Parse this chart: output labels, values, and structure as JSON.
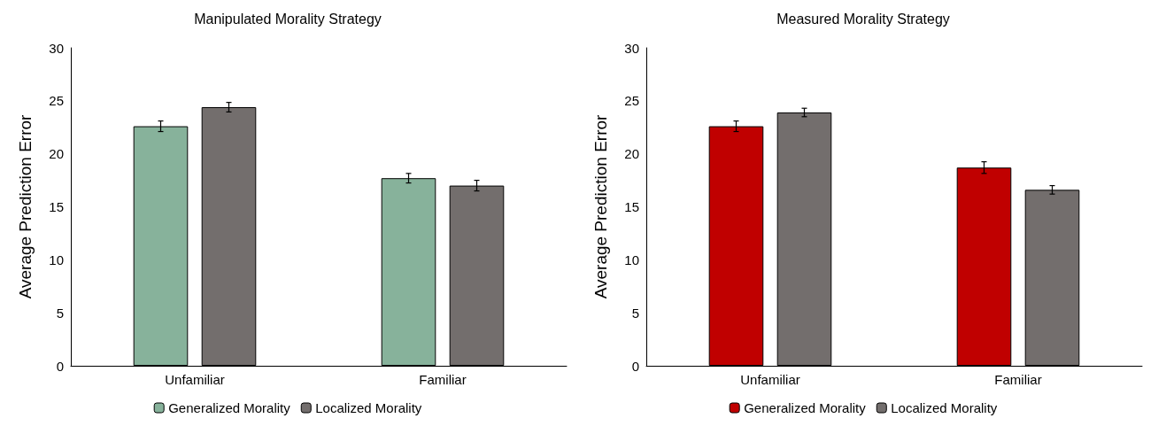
{
  "chart_data": [
    {
      "type": "bar",
      "title": "Manipulated Morality Strategy",
      "ylabel": "Average Prediction Error",
      "categories": [
        "Unfamiliar",
        "Familiar"
      ],
      "ylim": [
        0,
        30
      ],
      "yticks": [
        0,
        5,
        10,
        15,
        20,
        25,
        30
      ],
      "grid": false,
      "legend": "bottom",
      "series": [
        {
          "name": "Generalized Morality",
          "color": "#87b29b",
          "values": [
            22.6,
            17.7
          ],
          "errors": [
            0.5,
            0.45
          ]
        },
        {
          "name": "Localized Morality",
          "color": "#736e6d",
          "values": [
            24.4,
            17
          ],
          "errors": [
            0.45,
            0.5
          ]
        }
      ]
    },
    {
      "type": "bar",
      "title": "Measured Morality Strategy",
      "ylabel": "Average Prediction Error",
      "categories": [
        "Unfamiliar",
        "Familiar"
      ],
      "ylim": [
        0,
        30
      ],
      "yticks": [
        0,
        5,
        10,
        15,
        20,
        25,
        30
      ],
      "grid": false,
      "legend": "bottom",
      "series": [
        {
          "name": "Generalized Morality",
          "color": "#c00000",
          "values": [
            22.6,
            18.7
          ],
          "errors": [
            0.5,
            0.55
          ]
        },
        {
          "name": "Localized Morality",
          "color": "#736e6d",
          "values": [
            23.9,
            16.6
          ],
          "errors": [
            0.4,
            0.4
          ]
        }
      ]
    }
  ]
}
